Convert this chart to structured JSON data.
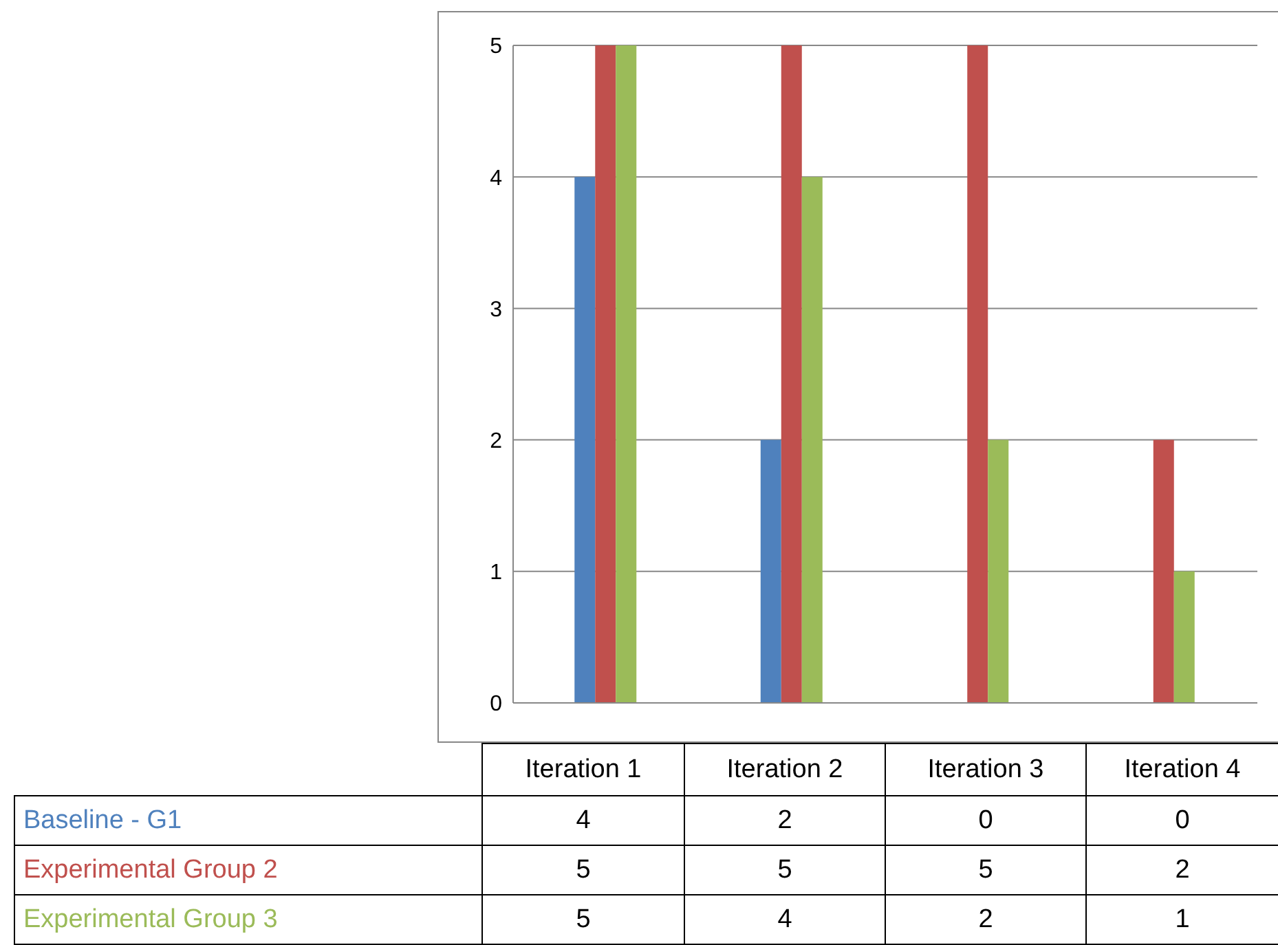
{
  "chart_data": {
    "type": "bar",
    "categories": [
      "Iteration 1",
      "Iteration 2",
      "Iteration 3",
      "Iteration 4"
    ],
    "series": [
      {
        "name": "Baseline - G1",
        "color": "#4f81bd",
        "values": [
          4,
          2,
          0,
          0
        ]
      },
      {
        "name": "Experimental Group 2",
        "color": "#c0504d",
        "values": [
          5,
          5,
          5,
          2
        ]
      },
      {
        "name": "Experimental Group 3",
        "color": "#9bbb59",
        "values": [
          5,
          4,
          2,
          1
        ]
      }
    ],
    "ylim": [
      0,
      5
    ],
    "yticks": [
      0,
      1,
      2,
      3,
      4,
      5
    ],
    "grid": "y",
    "data_labels": true
  }
}
